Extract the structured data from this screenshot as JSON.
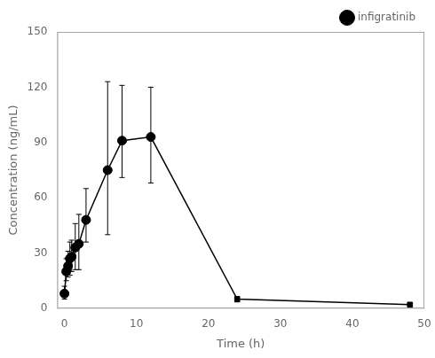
{
  "chart_data": {
    "type": "line",
    "xlabel": "Time (h)",
    "ylabel": "Concentration (ng/mL)",
    "xlim": [
      -1,
      50
    ],
    "ylim": [
      0,
      150
    ],
    "xticks": [
      0,
      10,
      20,
      30,
      40,
      50
    ],
    "yticks": [
      0,
      30,
      60,
      90,
      120,
      150
    ],
    "grid": false,
    "legend": "upper right",
    "line_style": "solid",
    "color": "black",
    "series": [
      {
        "name": "infigratinib",
        "marker": "circle",
        "x": [
          0.0,
          0.25,
          0.5,
          0.75,
          1.0,
          1.5,
          2.0,
          3.0,
          6.0,
          8.0,
          12.0
        ],
        "values": [
          8.0,
          20.0,
          23.0,
          27.0,
          28.0,
          33.0,
          35.0,
          48.0,
          75.0,
          91.0,
          93.0
        ],
        "yerr_low": [
          3.0,
          5.0,
          6.0,
          9.0,
          8.0,
          12.0,
          14.0,
          12.0,
          35.0,
          20.0,
          25.0
        ],
        "yerr_high": [
          4.0,
          7.0,
          8.0,
          9.0,
          9.0,
          13.0,
          16.0,
          17.0,
          48.0,
          30.0,
          27.0
        ]
      },
      {
        "marker": "square",
        "x": [
          24.0,
          48.0
        ],
        "values": [
          5.0,
          2.0
        ],
        "yerr_low": [
          1.5,
          0.5
        ],
        "yerr_high": [
          1.5,
          1.0
        ]
      }
    ]
  }
}
